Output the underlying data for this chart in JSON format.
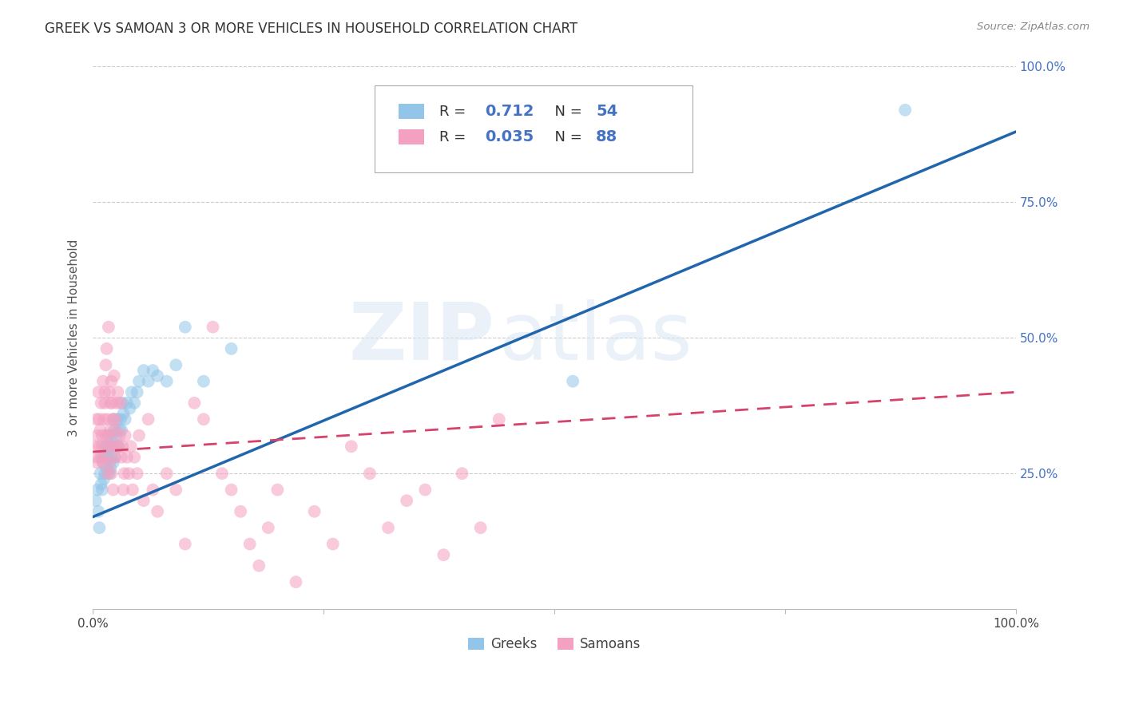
{
  "title": "GREEK VS SAMOAN 3 OR MORE VEHICLES IN HOUSEHOLD CORRELATION CHART",
  "source": "Source: ZipAtlas.com",
  "ylabel_label": "3 or more Vehicles in Household",
  "right_yticks": [
    "100.0%",
    "75.0%",
    "50.0%",
    "25.0%"
  ],
  "right_ytick_vals": [
    1.0,
    0.75,
    0.5,
    0.25
  ],
  "watermark_zip": "ZIP",
  "watermark_atlas": "atlas",
  "legend_greek_R": "0.712",
  "legend_greek_N": "54",
  "legend_samoan_R": "0.035",
  "legend_samoan_N": "88",
  "greek_color": "#92c5e8",
  "samoan_color": "#f4a0c0",
  "greek_line_color": "#2166ac",
  "samoan_line_color": "#d6426a",
  "legend_text_color": "#4472c4",
  "greek_scatter_x": [
    0.003,
    0.005,
    0.006,
    0.007,
    0.008,
    0.009,
    0.01,
    0.01,
    0.011,
    0.012,
    0.013,
    0.013,
    0.014,
    0.015,
    0.015,
    0.016,
    0.017,
    0.018,
    0.018,
    0.019,
    0.02,
    0.02,
    0.021,
    0.022,
    0.022,
    0.023,
    0.024,
    0.025,
    0.026,
    0.027,
    0.028,
    0.029,
    0.03,
    0.031,
    0.032,
    0.033,
    0.035,
    0.037,
    0.04,
    0.042,
    0.045,
    0.048,
    0.05,
    0.055,
    0.06,
    0.065,
    0.07,
    0.08,
    0.09,
    0.1,
    0.12,
    0.15,
    0.52,
    0.88
  ],
  "greek_scatter_y": [
    0.2,
    0.22,
    0.18,
    0.15,
    0.25,
    0.23,
    0.28,
    0.22,
    0.27,
    0.24,
    0.3,
    0.25,
    0.28,
    0.26,
    0.3,
    0.28,
    0.32,
    0.25,
    0.3,
    0.26,
    0.3,
    0.28,
    0.32,
    0.35,
    0.27,
    0.33,
    0.28,
    0.32,
    0.3,
    0.35,
    0.3,
    0.33,
    0.35,
    0.33,
    0.38,
    0.36,
    0.35,
    0.38,
    0.37,
    0.4,
    0.38,
    0.4,
    0.42,
    0.44,
    0.42,
    0.44,
    0.43,
    0.42,
    0.45,
    0.52,
    0.42,
    0.48,
    0.42,
    0.92
  ],
  "samoan_scatter_x": [
    0.002,
    0.003,
    0.004,
    0.005,
    0.005,
    0.006,
    0.007,
    0.007,
    0.008,
    0.008,
    0.009,
    0.01,
    0.01,
    0.011,
    0.011,
    0.012,
    0.012,
    0.013,
    0.013,
    0.014,
    0.014,
    0.015,
    0.015,
    0.016,
    0.016,
    0.017,
    0.017,
    0.018,
    0.018,
    0.019,
    0.019,
    0.02,
    0.02,
    0.021,
    0.021,
    0.022,
    0.022,
    0.023,
    0.023,
    0.024,
    0.024,
    0.025,
    0.026,
    0.027,
    0.028,
    0.029,
    0.03,
    0.031,
    0.032,
    0.033,
    0.034,
    0.035,
    0.037,
    0.039,
    0.041,
    0.043,
    0.045,
    0.048,
    0.05,
    0.055,
    0.06,
    0.065,
    0.07,
    0.08,
    0.09,
    0.1,
    0.11,
    0.12,
    0.13,
    0.14,
    0.15,
    0.16,
    0.17,
    0.18,
    0.19,
    0.2,
    0.22,
    0.24,
    0.26,
    0.28,
    0.3,
    0.32,
    0.34,
    0.36,
    0.38,
    0.4,
    0.42,
    0.44
  ],
  "samoan_scatter_y": [
    0.3,
    0.28,
    0.35,
    0.32,
    0.27,
    0.4,
    0.3,
    0.35,
    0.28,
    0.33,
    0.38,
    0.3,
    0.32,
    0.27,
    0.42,
    0.35,
    0.28,
    0.4,
    0.38,
    0.45,
    0.32,
    0.48,
    0.3,
    0.35,
    0.25,
    0.52,
    0.32,
    0.4,
    0.27,
    0.38,
    0.33,
    0.42,
    0.25,
    0.38,
    0.3,
    0.35,
    0.22,
    0.43,
    0.3,
    0.35,
    0.28,
    0.33,
    0.38,
    0.4,
    0.3,
    0.32,
    0.38,
    0.28,
    0.3,
    0.22,
    0.25,
    0.32,
    0.28,
    0.25,
    0.3,
    0.22,
    0.28,
    0.25,
    0.32,
    0.2,
    0.35,
    0.22,
    0.18,
    0.25,
    0.22,
    0.12,
    0.38,
    0.35,
    0.52,
    0.25,
    0.22,
    0.18,
    0.12,
    0.08,
    0.15,
    0.22,
    0.05,
    0.18,
    0.12,
    0.3,
    0.25,
    0.15,
    0.2,
    0.22,
    0.1,
    0.25,
    0.15,
    0.35
  ],
  "greek_line_x": [
    0.0,
    1.0
  ],
  "greek_line_y": [
    0.17,
    0.88
  ],
  "samoan_line_x": [
    0.0,
    1.0
  ],
  "samoan_line_y": [
    0.29,
    0.4
  ],
  "xlim": [
    0.0,
    1.0
  ],
  "ylim": [
    0.0,
    1.0
  ],
  "background_color": "#ffffff",
  "grid_color": "#cccccc"
}
